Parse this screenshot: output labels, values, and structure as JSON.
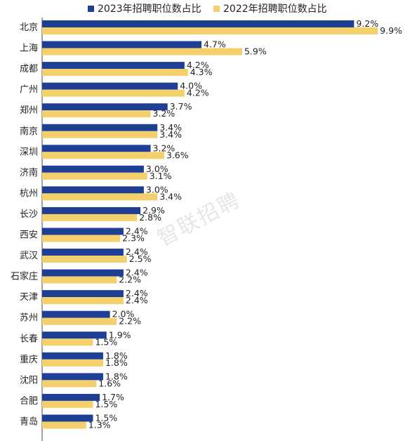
{
  "chart_data": {
    "type": "bar",
    "orientation": "horizontal",
    "categories": [
      "北京",
      "上海",
      "成都",
      "广州",
      "郑州",
      "南京",
      "深圳",
      "济南",
      "杭州",
      "长沙",
      "西安",
      "武汉",
      "石家庄",
      "天津",
      "苏州",
      "长春",
      "重庆",
      "沈阳",
      "合肥",
      "青岛"
    ],
    "series": [
      {
        "name": "2023年招聘职位数占比",
        "color": "#1f3f95",
        "values": [
          9.2,
          4.7,
          4.2,
          4.0,
          3.7,
          3.4,
          3.2,
          3.0,
          3.0,
          2.9,
          2.4,
          2.4,
          2.4,
          2.4,
          2.0,
          1.9,
          1.8,
          1.8,
          1.7,
          1.5
        ]
      },
      {
        "name": "2022年招聘职位数占比",
        "color": "#f3d06b",
        "values": [
          9.9,
          5.9,
          4.3,
          4.2,
          3.2,
          3.4,
          3.6,
          3.1,
          3.4,
          2.8,
          2.3,
          2.5,
          2.2,
          2.4,
          2.2,
          1.5,
          1.8,
          1.6,
          1.5,
          1.3
        ]
      }
    ],
    "value_suffix": "%",
    "legend_position": "top",
    "xlim": [
      0,
      10
    ],
    "grid": false
  },
  "watermark": "智联招聘"
}
